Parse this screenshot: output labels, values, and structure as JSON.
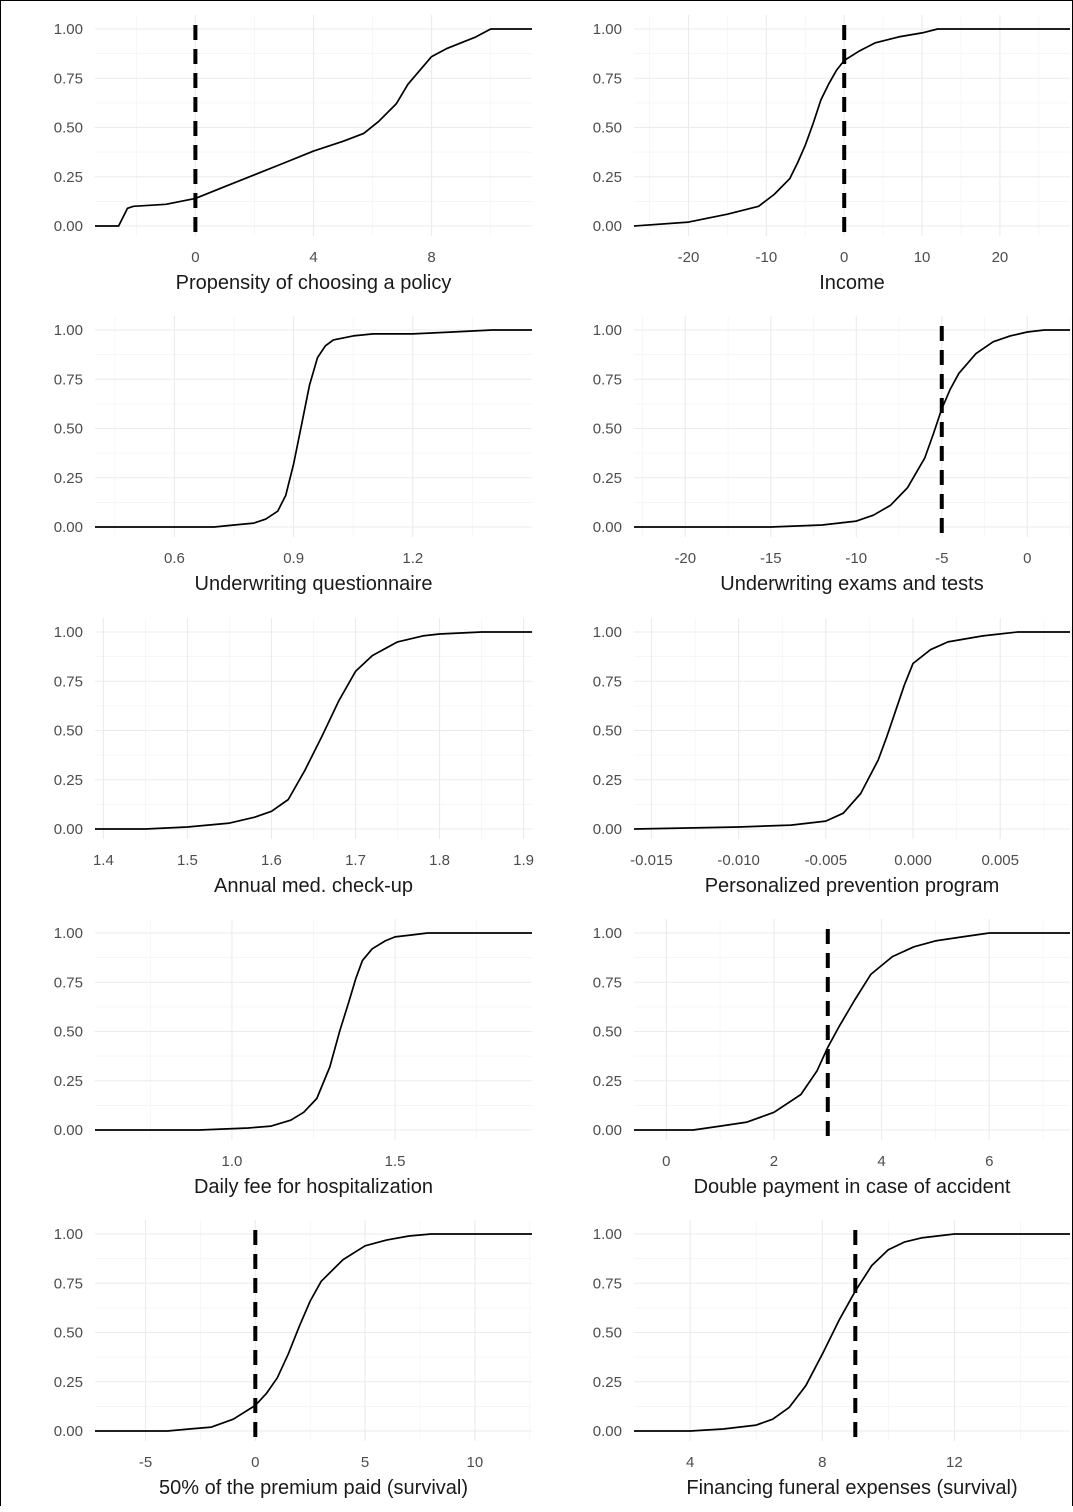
{
  "chart_data": [
    {
      "type": "line",
      "xlabel": "Propensity of choosing a policy",
      "xlim": [
        -3.4,
        11.4
      ],
      "xticks": [
        0,
        4,
        8
      ],
      "xtick_labels": [
        "0",
        "4",
        "8"
      ],
      "ylim": [
        0,
        1
      ],
      "yticks": [
        0,
        0.25,
        0.5,
        0.75,
        1
      ],
      "ytick_labels": [
        "0.00",
        "0.25",
        "0.50",
        "0.75",
        "1.00"
      ],
      "grid": true,
      "reference_line_x": 0,
      "x": [
        -3.4,
        -2.6,
        -2.3,
        -2.1,
        -1.0,
        0.0,
        1.0,
        2.0,
        3.0,
        4.0,
        5.0,
        5.7,
        6.2,
        6.8,
        7.2,
        8.0,
        8.5,
        9.0,
        9.5,
        10.0,
        10.2,
        11.4
      ],
      "y": [
        0.0,
        0.0,
        0.09,
        0.1,
        0.11,
        0.14,
        0.2,
        0.26,
        0.32,
        0.38,
        0.43,
        0.47,
        0.53,
        0.62,
        0.72,
        0.86,
        0.9,
        0.93,
        0.96,
        1.0,
        1.0,
        1.0
      ]
    },
    {
      "type": "line",
      "xlabel": "Income",
      "xlim": [
        -27,
        29
      ],
      "xticks": [
        -20,
        -10,
        0,
        10,
        20
      ],
      "xtick_labels": [
        "-20",
        "-10",
        "0",
        "10",
        "20"
      ],
      "ylim": [
        0,
        1
      ],
      "yticks": [
        0,
        0.25,
        0.5,
        0.75,
        1
      ],
      "ytick_labels": [
        "0.00",
        "0.25",
        "0.50",
        "0.75",
        "1.00"
      ],
      "grid": true,
      "reference_line_x": 0,
      "x": [
        -27,
        -20,
        -15,
        -11,
        -9,
        -7,
        -6,
        -5,
        -4,
        -3,
        -2,
        -1,
        0,
        2,
        4,
        7,
        10,
        12,
        15,
        20,
        29
      ],
      "y": [
        0.0,
        0.02,
        0.06,
        0.1,
        0.16,
        0.24,
        0.32,
        0.41,
        0.52,
        0.64,
        0.72,
        0.79,
        0.84,
        0.89,
        0.93,
        0.96,
        0.98,
        1.0,
        1.0,
        1.0,
        1.0
      ]
    },
    {
      "type": "line",
      "xlabel": "Underwriting questionnaire",
      "xlim": [
        0.4,
        1.5
      ],
      "xticks": [
        0.6,
        0.9,
        1.2
      ],
      "xtick_labels": [
        "0.6",
        "0.9",
        "1.2"
      ],
      "ylim": [
        0,
        1
      ],
      "yticks": [
        0,
        0.25,
        0.5,
        0.75,
        1
      ],
      "ytick_labels": [
        "0.00",
        "0.25",
        "0.50",
        "0.75",
        "1.00"
      ],
      "grid": true,
      "x": [
        0.4,
        0.6,
        0.7,
        0.75,
        0.8,
        0.83,
        0.86,
        0.88,
        0.9,
        0.92,
        0.94,
        0.96,
        0.98,
        1.0,
        1.05,
        1.1,
        1.2,
        1.3,
        1.4,
        1.5
      ],
      "y": [
        0.0,
        0.0,
        0.0,
        0.01,
        0.02,
        0.04,
        0.08,
        0.16,
        0.32,
        0.52,
        0.72,
        0.86,
        0.92,
        0.95,
        0.97,
        0.98,
        0.98,
        0.99,
        1.0,
        1.0
      ]
    },
    {
      "type": "line",
      "xlabel": "Underwriting exams and tests",
      "xlim": [
        -23,
        2.5
      ],
      "xticks": [
        -20,
        -15,
        -10,
        -5,
        0
      ],
      "xtick_labels": [
        "-20",
        "-15",
        "-10",
        "-5",
        "0"
      ],
      "ylim": [
        0,
        1
      ],
      "yticks": [
        0,
        0.25,
        0.5,
        0.75,
        1
      ],
      "ytick_labels": [
        "0.00",
        "0.25",
        "0.50",
        "0.75",
        "1.00"
      ],
      "grid": true,
      "reference_line_x": -5,
      "x": [
        -23,
        -15,
        -12,
        -10,
        -9,
        -8,
        -7,
        -6,
        -5.5,
        -5,
        -4.5,
        -4,
        -3,
        -2,
        -1,
        0,
        1,
        2.5
      ],
      "y": [
        0.0,
        0.0,
        0.01,
        0.03,
        0.06,
        0.11,
        0.2,
        0.35,
        0.47,
        0.6,
        0.7,
        0.78,
        0.88,
        0.94,
        0.97,
        0.99,
        1.0,
        1.0
      ]
    },
    {
      "type": "line",
      "xlabel": "Annual med. check-up",
      "xlim": [
        1.39,
        1.91
      ],
      "xticks": [
        1.4,
        1.5,
        1.6,
        1.7,
        1.8,
        1.9
      ],
      "xtick_labels": [
        "1.4",
        "1.5",
        "1.6",
        "1.7",
        "1.8",
        "1.9"
      ],
      "ylim": [
        0,
        1
      ],
      "yticks": [
        0,
        0.25,
        0.5,
        0.75,
        1
      ],
      "ytick_labels": [
        "0.00",
        "0.25",
        "0.50",
        "0.75",
        "1.00"
      ],
      "grid": true,
      "x": [
        1.39,
        1.45,
        1.5,
        1.55,
        1.58,
        1.6,
        1.62,
        1.64,
        1.66,
        1.68,
        1.7,
        1.72,
        1.75,
        1.78,
        1.8,
        1.85,
        1.91
      ],
      "y": [
        0.0,
        0.0,
        0.01,
        0.03,
        0.06,
        0.09,
        0.15,
        0.3,
        0.47,
        0.65,
        0.8,
        0.88,
        0.95,
        0.98,
        0.99,
        1.0,
        1.0
      ]
    },
    {
      "type": "line",
      "xlabel": "Personalized prevention program",
      "xlim": [
        -0.016,
        0.009
      ],
      "xticks": [
        -0.015,
        -0.01,
        -0.005,
        0.0,
        0.005
      ],
      "xtick_labels": [
        "-0.015",
        "-0.010",
        "-0.005",
        "0.000",
        "0.005"
      ],
      "ylim": [
        0,
        1
      ],
      "yticks": [
        0,
        0.25,
        0.5,
        0.75,
        1
      ],
      "ytick_labels": [
        "0.00",
        "0.25",
        "0.50",
        "0.75",
        "1.00"
      ],
      "grid": true,
      "x": [
        -0.016,
        -0.01,
        -0.007,
        -0.005,
        -0.004,
        -0.003,
        -0.002,
        -0.0015,
        -0.001,
        -0.0005,
        0.0,
        0.001,
        0.002,
        0.004,
        0.006,
        0.009
      ],
      "y": [
        0.0,
        0.01,
        0.02,
        0.04,
        0.08,
        0.18,
        0.35,
        0.47,
        0.6,
        0.73,
        0.84,
        0.91,
        0.95,
        0.98,
        1.0,
        1.0
      ]
    },
    {
      "type": "line",
      "xlabel": "Daily fee for hospitalization",
      "xlim": [
        0.58,
        1.92
      ],
      "xticks": [
        1.0,
        1.5
      ],
      "xtick_labels": [
        "1.0",
        "1.5"
      ],
      "ylim": [
        0,
        1
      ],
      "yticks": [
        0,
        0.25,
        0.5,
        0.75,
        1
      ],
      "ytick_labels": [
        "0.00",
        "0.25",
        "0.50",
        "0.75",
        "1.00"
      ],
      "grid": true,
      "x": [
        0.58,
        0.9,
        1.05,
        1.12,
        1.18,
        1.22,
        1.26,
        1.3,
        1.33,
        1.36,
        1.38,
        1.4,
        1.43,
        1.47,
        1.5,
        1.55,
        1.6,
        1.7,
        1.92
      ],
      "y": [
        0.0,
        0.0,
        0.01,
        0.02,
        0.05,
        0.09,
        0.16,
        0.32,
        0.5,
        0.66,
        0.77,
        0.86,
        0.92,
        0.96,
        0.98,
        0.99,
        1.0,
        1.0,
        1.0
      ]
    },
    {
      "type": "line",
      "xlabel": "Double payment in case of accident",
      "xlim": [
        -0.6,
        7.5
      ],
      "xticks": [
        0,
        2,
        4,
        6
      ],
      "xtick_labels": [
        "0",
        "2",
        "4",
        "6"
      ],
      "ylim": [
        0,
        1
      ],
      "yticks": [
        0,
        0.25,
        0.5,
        0.75,
        1
      ],
      "ytick_labels": [
        "0.00",
        "0.25",
        "0.50",
        "0.75",
        "1.00"
      ],
      "grid": true,
      "reference_line_x": 3,
      "x": [
        -0.6,
        0.5,
        1.0,
        1.5,
        2.0,
        2.5,
        2.8,
        3.0,
        3.2,
        3.5,
        3.8,
        4.2,
        4.6,
        5.0,
        5.5,
        6.0,
        7.5
      ],
      "y": [
        0.0,
        0.0,
        0.02,
        0.04,
        0.09,
        0.18,
        0.3,
        0.42,
        0.52,
        0.66,
        0.79,
        0.88,
        0.93,
        0.96,
        0.98,
        1.0,
        1.0
      ]
    },
    {
      "type": "line",
      "xlabel": "50% of the premium paid (survival)",
      "xlim": [
        -7.3,
        12.6
      ],
      "xticks": [
        -5,
        0,
        5,
        10
      ],
      "xtick_labels": [
        "-5",
        "0",
        "5",
        "10"
      ],
      "ylim": [
        0,
        1
      ],
      "yticks": [
        0,
        0.25,
        0.5,
        0.75,
        1
      ],
      "ytick_labels": [
        "0.00",
        "0.25",
        "0.50",
        "0.75",
        "1.00"
      ],
      "grid": true,
      "reference_line_x": 0,
      "x": [
        -7.3,
        -4,
        -3,
        -2,
        -1,
        0,
        0.5,
        1,
        1.5,
        2,
        2.5,
        3,
        4,
        5,
        6,
        7,
        8,
        12.6
      ],
      "y": [
        0.0,
        0.0,
        0.01,
        0.02,
        0.06,
        0.13,
        0.19,
        0.27,
        0.39,
        0.53,
        0.66,
        0.76,
        0.87,
        0.94,
        0.97,
        0.99,
        1.0,
        1.0
      ]
    },
    {
      "type": "line",
      "xlabel": "Financing funeral expenses (survival)",
      "xlim": [
        2.3,
        15.5
      ],
      "xticks": [
        4,
        8,
        12
      ],
      "xtick_labels": [
        "4",
        "8",
        "12"
      ],
      "ylim": [
        0,
        1
      ],
      "yticks": [
        0,
        0.25,
        0.5,
        0.75,
        1
      ],
      "ytick_labels": [
        "0.00",
        "0.25",
        "0.50",
        "0.75",
        "1.00"
      ],
      "grid": true,
      "reference_line_x": 9,
      "x": [
        2.3,
        4,
        5,
        6,
        6.5,
        7,
        7.5,
        8,
        8.5,
        9,
        9.5,
        10,
        10.5,
        11,
        12,
        13,
        15.5
      ],
      "y": [
        0.0,
        0.0,
        0.01,
        0.03,
        0.06,
        0.12,
        0.23,
        0.39,
        0.56,
        0.71,
        0.84,
        0.92,
        0.96,
        0.98,
        1.0,
        1.0,
        1.0
      ]
    }
  ]
}
